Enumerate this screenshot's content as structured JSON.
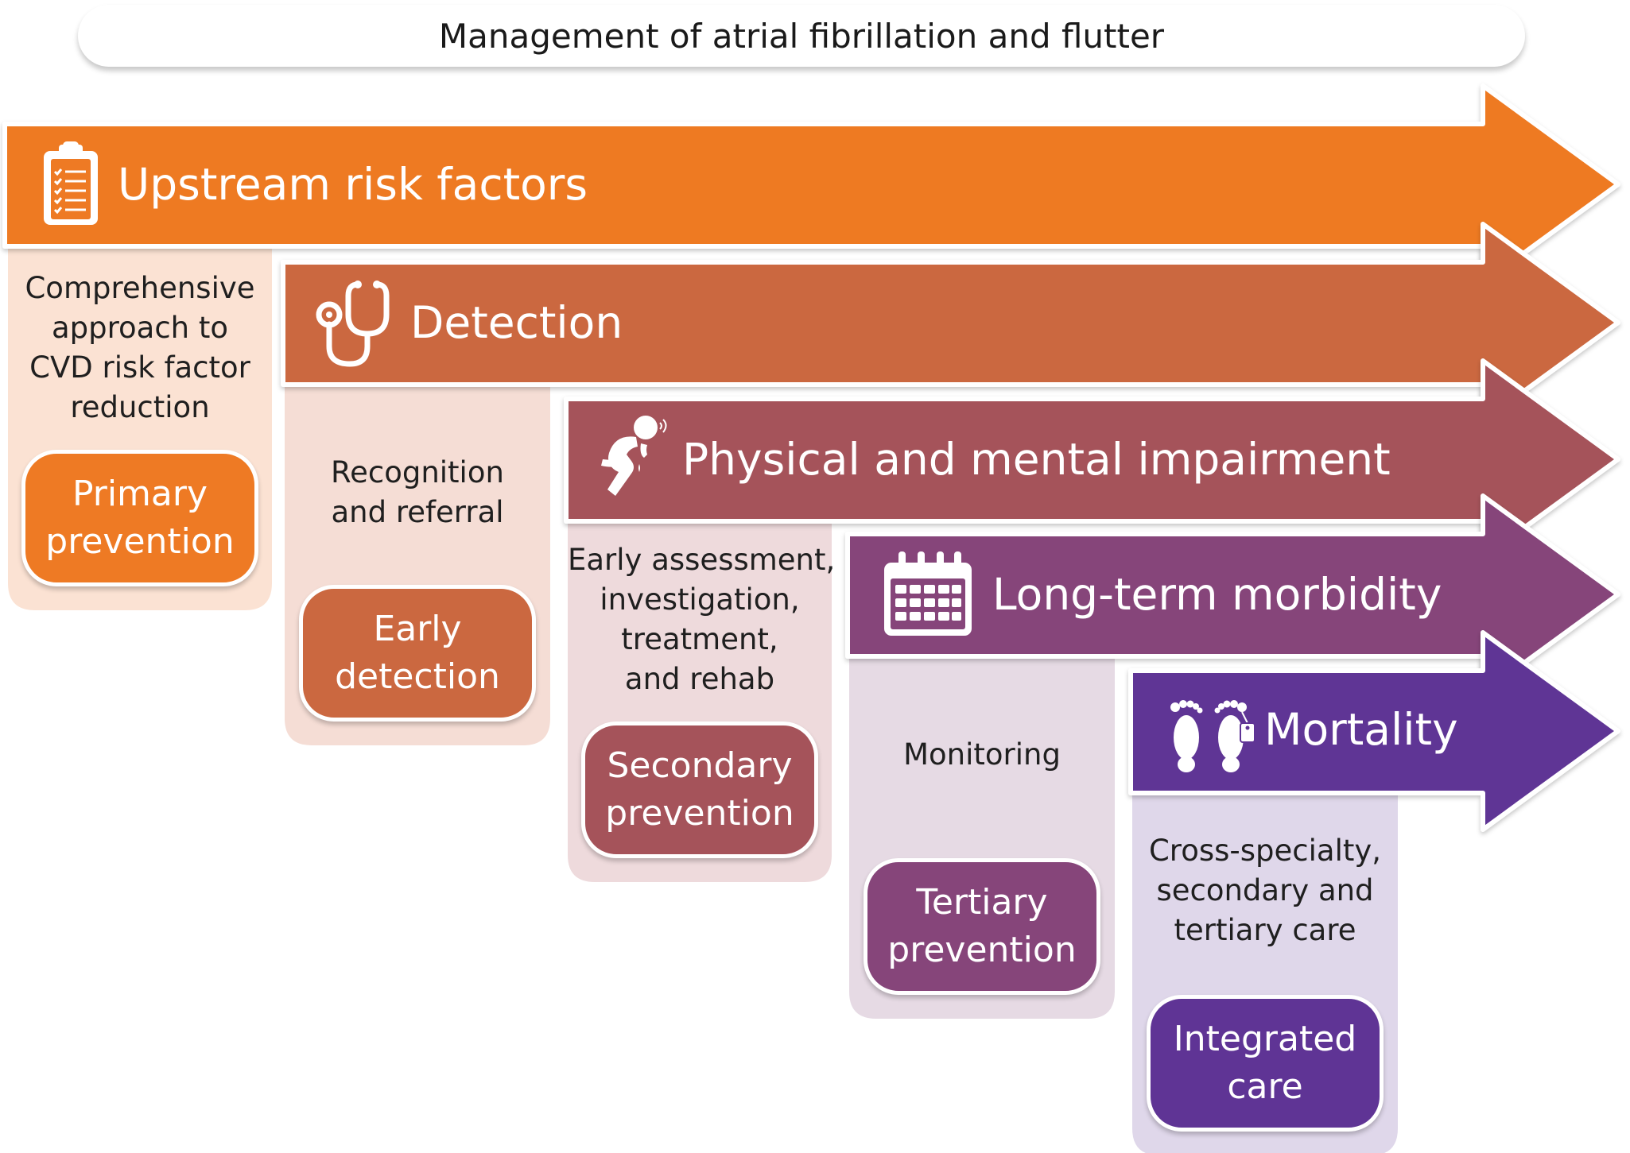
{
  "title": "Management of atrial fibrillation and flutter",
  "stages": [
    {
      "label": "Upstream risk factors",
      "icon": "clipboard-icon",
      "color": "#ee7a24",
      "panel_color": "#fbe2d3",
      "description": [
        "Comprehensive",
        "approach to",
        "CVD risk factor",
        "reduction"
      ],
      "button": [
        "Primary",
        "prevention"
      ]
    },
    {
      "label": "Detection",
      "icon": "stethoscope-icon",
      "color": "#cb6840",
      "panel_color": "#f5ddd5",
      "description": [
        "Recognition",
        "and referral"
      ],
      "button": [
        "Early",
        "detection"
      ]
    },
    {
      "label": "Physical and mental impairment",
      "icon": "distressed-person-icon",
      "color": "#a5535a",
      "panel_color": "#eedadc",
      "description": [
        "Early assessment,",
        "investigation,",
        "treatment,",
        "and rehab"
      ],
      "button": [
        "Secondary",
        "prevention"
      ]
    },
    {
      "label": "Long-term morbidity",
      "icon": "calendar-icon",
      "color": "#86457a",
      "panel_color": "#e6dae4",
      "description": [
        "Monitoring"
      ],
      "button": [
        "Tertiary",
        "prevention"
      ]
    },
    {
      "label": "Mortality",
      "icon": "feet-with-tag-icon",
      "color": "#5f3495",
      "panel_color": "#dfd7ea",
      "description": [
        "Cross-specialty,",
        "secondary and",
        "tertiary care"
      ],
      "button": [
        "Integrated",
        "care"
      ]
    }
  ]
}
